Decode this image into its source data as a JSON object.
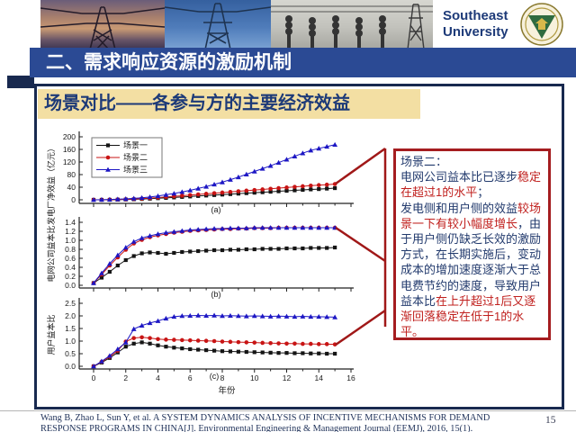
{
  "header": {
    "university_name": "Southeast University",
    "seal": "southeast-university-seal"
  },
  "title_bar": {
    "title": "二、需求响应资源的激励机制"
  },
  "subtitle": "场景对比——各参与方的主要经济效益",
  "chart_data": {
    "type": "line",
    "x": [
      0,
      0.5,
      1,
      1.5,
      2,
      2.5,
      3,
      3.5,
      4,
      4.5,
      5,
      5.5,
      6,
      6.5,
      7,
      7.5,
      8,
      8.5,
      9,
      9.5,
      10,
      10.5,
      11,
      11.5,
      12,
      12.5,
      13,
      13.5,
      14,
      14.5,
      15
    ],
    "x_label": "年份",
    "x_tick_labels": [
      "0",
      "2",
      "4",
      "6",
      "8",
      "10",
      "12",
      "14",
      "16"
    ],
    "x_range": [
      0,
      16
    ],
    "grid": false,
    "legend_position": "top-left-inside-panel-a",
    "panels": [
      {
        "label": "(a)",
        "ylabel": "发电厂净效益（亿元）",
        "ylim": [
          0,
          200
        ],
        "yticks": [
          "0",
          "40",
          "80",
          "120",
          "160",
          "200"
        ],
        "series": [
          {
            "name": "场景一",
            "marker": "square",
            "color": "#141414",
            "values": [
              0,
              0,
              0,
              0.5,
              1,
              1.5,
              2.5,
              3.5,
              5,
              6,
              7.5,
              9,
              10.5,
              12,
              13.5,
              15,
              16.5,
              18,
              19.5,
              21,
              22.5,
              24,
              25.5,
              27,
              28.5,
              30,
              31.5,
              33,
              34,
              35.5,
              37
            ]
          },
          {
            "name": "场景二",
            "marker": "circle",
            "color": "#c81414",
            "values": [
              0,
              0,
              0.5,
              1,
              1.5,
              2.5,
              4,
              5.5,
              7,
              9,
              11,
              13,
              15,
              17,
              19,
              21,
              23,
              25,
              27,
              29,
              31,
              33,
              35,
              37,
              39,
              41,
              43,
              45,
              46.5,
              48,
              50
            ]
          },
          {
            "name": "场景三",
            "marker": "triangle",
            "color": "#1d17c4",
            "values": [
              0,
              0.5,
              1,
              2,
              3,
              4.5,
              6.5,
              9,
              12,
              16,
              20,
              25,
              30,
              36,
              42,
              49,
              56,
              64,
              72,
              81,
              90,
              99,
              108,
              118,
              128,
              138,
              148,
              157,
              163,
              169,
              175
            ]
          }
        ]
      },
      {
        "label": "(b)",
        "ylabel": "电网公司益本比",
        "ylim": [
          0,
          1.4
        ],
        "yticks": [
          "0.0",
          "0.2",
          "0.4",
          "0.6",
          "0.8",
          "1.0",
          "1.2",
          "1.4"
        ],
        "series": [
          {
            "name": "场景一",
            "marker": "square",
            "color": "#141414",
            "values": [
              0.05,
              0.17,
              0.3,
              0.44,
              0.56,
              0.65,
              0.71,
              0.73,
              0.72,
              0.7,
              0.72,
              0.74,
              0.75,
              0.76,
              0.77,
              0.78,
              0.78,
              0.79,
              0.79,
              0.8,
              0.8,
              0.81,
              0.81,
              0.81,
              0.82,
              0.82,
              0.82,
              0.83,
              0.83,
              0.83,
              0.84
            ]
          },
          {
            "name": "场景二",
            "marker": "circle",
            "color": "#c81414",
            "values": [
              0.05,
              0.24,
              0.44,
              0.62,
              0.79,
              0.93,
              1.01,
              1.07,
              1.11,
              1.14,
              1.17,
              1.19,
              1.21,
              1.22,
              1.23,
              1.24,
              1.25,
              1.25,
              1.26,
              1.26,
              1.27,
              1.27,
              1.27,
              1.28,
              1.28,
              1.28,
              1.28,
              1.28,
              1.28,
              1.28,
              1.28
            ]
          },
          {
            "name": "场景三",
            "marker": "triangle",
            "color": "#1d17c4",
            "values": [
              0.05,
              0.27,
              0.48,
              0.67,
              0.84,
              0.97,
              1.05,
              1.1,
              1.14,
              1.17,
              1.19,
              1.21,
              1.23,
              1.24,
              1.25,
              1.26,
              1.26,
              1.27,
              1.27,
              1.27,
              1.28,
              1.28,
              1.28,
              1.28,
              1.28,
              1.28,
              1.28,
              1.28,
              1.28,
              1.28,
              1.28
            ]
          }
        ]
      },
      {
        "label": "(c)",
        "ylabel": "用户益本比",
        "ylim": [
          0,
          2.5
        ],
        "yticks": [
          "0.0",
          "0.5",
          "1.0",
          "1.5",
          "2.0",
          "2.5"
        ],
        "series": [
          {
            "name": "场景一",
            "marker": "square",
            "color": "#141414",
            "values": [
              0,
              0.15,
              0.33,
              0.55,
              0.78,
              0.9,
              0.95,
              0.9,
              0.83,
              0.78,
              0.74,
              0.71,
              0.68,
              0.66,
              0.64,
              0.62,
              0.6,
              0.59,
              0.58,
              0.57,
              0.56,
              0.55,
              0.54,
              0.53,
              0.53,
              0.52,
              0.52,
              0.51,
              0.51,
              0.5,
              0.5
            ]
          },
          {
            "name": "场景二",
            "marker": "circle",
            "color": "#c81414",
            "values": [
              0,
              0.18,
              0.38,
              0.62,
              0.98,
              1.12,
              1.15,
              1.12,
              1.08,
              1.06,
              1.05,
              1.04,
              1.03,
              1.02,
              1.01,
              1.0,
              0.98,
              0.97,
              0.96,
              0.95,
              0.94,
              0.93,
              0.92,
              0.91,
              0.9,
              0.9,
              0.89,
              0.89,
              0.88,
              0.88,
              0.87
            ]
          },
          {
            "name": "场景三",
            "marker": "triangle",
            "color": "#1d17c4",
            "values": [
              0,
              0.2,
              0.42,
              0.68,
              0.95,
              1.48,
              1.62,
              1.72,
              1.8,
              1.9,
              1.97,
              2.0,
              2.01,
              2.02,
              2.01,
              2.02,
              2.0,
              2.01,
              2.0,
              1.99,
              2.0,
              1.99,
              1.98,
              1.99,
              1.98,
              1.97,
              1.98,
              1.97,
              1.97,
              1.96,
              1.95
            ]
          }
        ]
      }
    ]
  },
  "callout": {
    "segments": [
      {
        "text": "场景二：\n电网公司益本比已逐步",
        "color": "#223a6d"
      },
      {
        "text": "稳定在超过1的水平",
        "color": "#c0201e"
      },
      {
        "text": "；\n发电侧和用户侧的效益",
        "color": "#223a6d"
      },
      {
        "text": "较场景一下有较小幅度增长",
        "color": "#c0201e"
      },
      {
        "text": "，由于用户侧仍缺乏长效的激励方式，在长期实施后，变动成本的增加速度逐渐大于总电费节约的速度，导致用户益本比",
        "color": "#223a6d"
      },
      {
        "text": "在上升超过1后又逐渐回落稳定在低于1的水平。",
        "color": "#c0201e"
      }
    ]
  },
  "footer": {
    "citation": "Wang B, Zhao L, Sun Y, et al. A SYSTEM DYNAMICS ANALYSIS OF INCENTIVE MECHANISMS FOR DEMAND RESPONSE PROGRAMS IN CHINA[J]. Environmental Engineering & Management Journal (EEMJ), 2016, 15(1).",
    "page_number": "15"
  }
}
